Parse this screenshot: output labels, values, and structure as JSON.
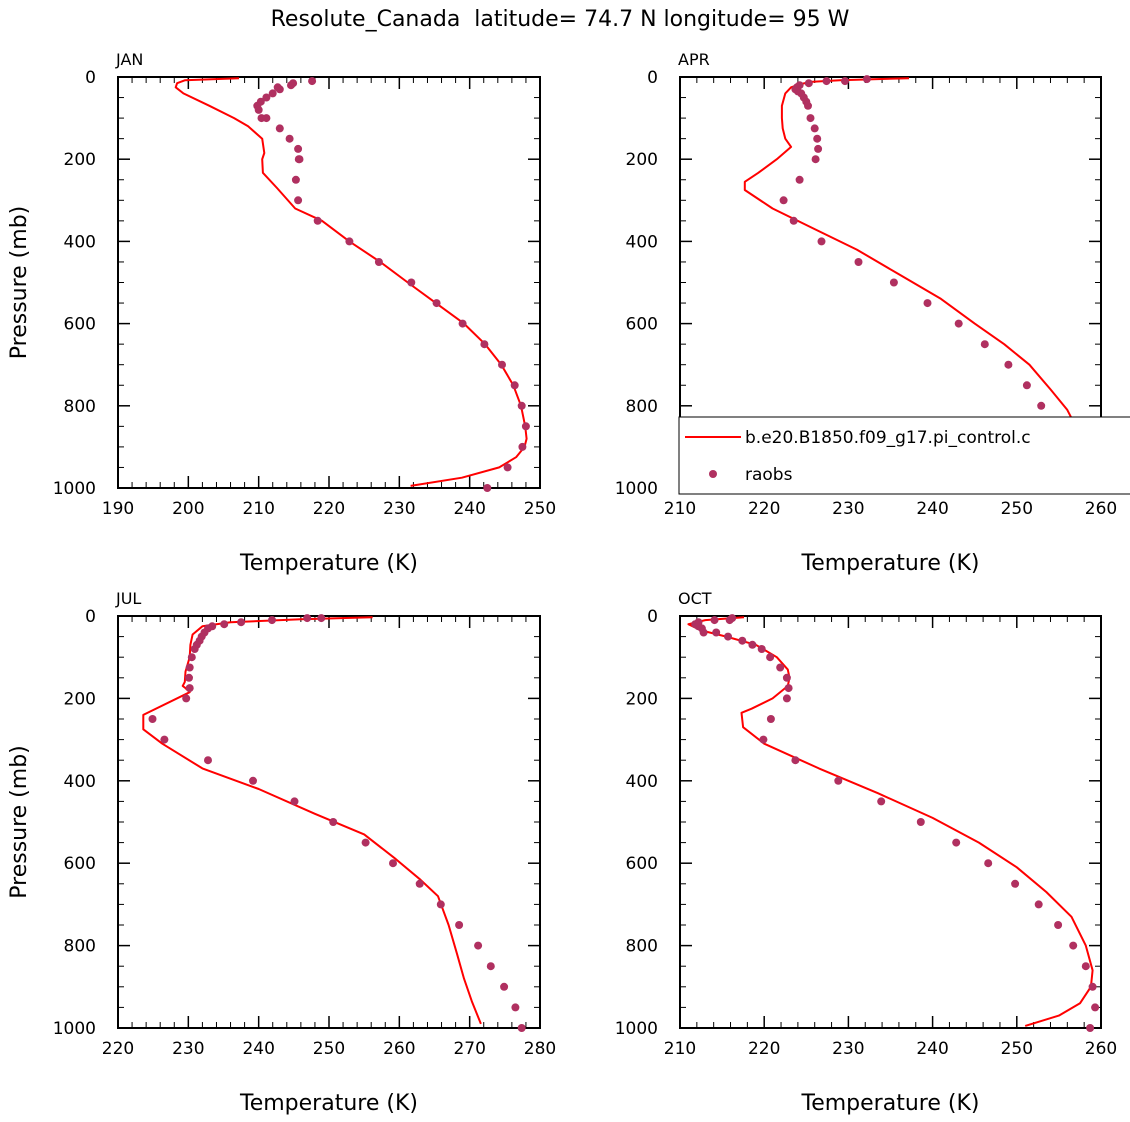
{
  "title": "Resolute_Canada  latitude= 74.7 N longitude= 95 W",
  "colors": {
    "model": "#ff0000",
    "obs": "#b03060"
  },
  "legend": {
    "model_label": "b.e20.B1850.f09_g17.pi_control.c",
    "obs_label": "raobs",
    "panel": "APR"
  },
  "chart_data": [
    {
      "type": "line",
      "title": "JAN",
      "xlabel": "Temperature (K)",
      "ylabel": "Pressure (mb)",
      "xlim": [
        190,
        250
      ],
      "ylim": [
        1000,
        0
      ],
      "xticks": [
        190,
        200,
        210,
        220,
        230,
        240,
        250
      ],
      "yticks": [
        0,
        200,
        400,
        600,
        800,
        1000
      ],
      "series": [
        {
          "name": "b.e20.B1850.f09_g17.pi_control.c",
          "kind": "line",
          "x": [
            207.2,
            199.5,
            198.4,
            198.2,
            199.3,
            203.0,
            206.5,
            208.5,
            210.5,
            210.8,
            210.5,
            210.6,
            212.6,
            215.2,
            219.0,
            222.9,
            227.3,
            231.2,
            235.2,
            239.2,
            242.2,
            244.5,
            246.2,
            247.3,
            247.9,
            248.1,
            247.8,
            246.6,
            244.2,
            238.9,
            231.6
          ],
          "y": [
            3,
            8,
            15,
            25,
            40,
            70,
            100,
            120,
            150,
            185,
            200,
            233,
            270,
            320,
            350,
            400,
            450,
            500,
            550,
            600,
            650,
            700,
            750,
            800,
            850,
            880,
            900,
            925,
            950,
            975,
            995
          ]
        },
        {
          "name": "raobs",
          "kind": "scatter",
          "x": [
            217.6,
            214.9,
            214.6,
            212.7,
            213.0,
            212.0,
            211.1,
            210.3,
            209.8,
            210.0,
            210.4,
            211.1,
            213.0,
            214.4,
            215.6,
            215.8,
            215.7,
            215.3,
            215.6,
            218.4,
            222.9,
            227.1,
            231.7,
            235.3,
            239.0,
            242.1,
            244.6,
            246.4,
            247.4,
            248.0,
            247.5,
            245.4,
            242.5
          ],
          "y": [
            10,
            15,
            20,
            25,
            30,
            40,
            50,
            60,
            70,
            80,
            100,
            100,
            125,
            150,
            175,
            200,
            200,
            250,
            300,
            350,
            400,
            450,
            500,
            550,
            600,
            650,
            700,
            750,
            800,
            850,
            900,
            950,
            1000
          ]
        }
      ]
    },
    {
      "type": "line",
      "title": "APR",
      "xlabel": "Temperature (K)",
      "ylabel": "",
      "xlim": [
        210,
        260
      ],
      "ylim": [
        1000,
        0
      ],
      "xticks": [
        210,
        220,
        230,
        240,
        250,
        260
      ],
      "yticks": [
        0,
        200,
        400,
        600,
        800,
        1000
      ],
      "series": [
        {
          "name": "b.e20.B1850.f09_g17.pi_control.c",
          "kind": "line",
          "x": [
            237.2,
            229.0,
            225.5,
            224.2,
            223.2,
            222.5,
            222.1,
            222.1,
            222.2,
            222.5,
            223.2,
            221.5,
            219.3,
            217.7,
            217.7,
            221.0,
            226.0,
            231.0,
            236.0,
            241.0,
            245.0,
            248.5,
            251.5,
            254.0,
            256.0,
            257.0,
            257.2,
            256.2,
            253.0,
            247.5
          ],
          "y": [
            3,
            8,
            12,
            18,
            25,
            40,
            70,
            100,
            125,
            150,
            170,
            200,
            233,
            255,
            275,
            320,
            370,
            420,
            480,
            540,
            600,
            650,
            700,
            760,
            810,
            850,
            900,
            945,
            975,
            995
          ]
        },
        {
          "name": "raobs",
          "kind": "scatter",
          "x": [
            232.2,
            229.6,
            227.4,
            225.3,
            224.2,
            223.9,
            223.7,
            224.0,
            224.4,
            224.7,
            225.0,
            225.2,
            225.5,
            226.0,
            226.3,
            226.4,
            226.1,
            224.2,
            222.3,
            223.5,
            226.8,
            231.2,
            235.4,
            239.4,
            243.1,
            246.2,
            249.0,
            251.2,
            252.9,
            254.1,
            254.2,
            253.4,
            251.1
          ],
          "y": [
            5,
            10,
            10,
            15,
            20,
            25,
            30,
            35,
            40,
            50,
            60,
            70,
            100,
            125,
            150,
            175,
            200,
            250,
            300,
            350,
            400,
            450,
            500,
            550,
            600,
            650,
            700,
            750,
            800,
            850,
            900,
            950,
            1000
          ]
        }
      ]
    },
    {
      "type": "line",
      "title": "JUL",
      "xlabel": "Temperature (K)",
      "ylabel": "Pressure (mb)",
      "xlim": [
        220,
        280
      ],
      "ylim": [
        1000,
        0
      ],
      "xticks": [
        220,
        230,
        240,
        250,
        260,
        270,
        280
      ],
      "yticks": [
        0,
        200,
        400,
        600,
        800,
        1000
      ],
      "series": [
        {
          "name": "b.e20.B1850.f09_g17.pi_control.c",
          "kind": "line",
          "x": [
            256.2,
            246.0,
            236.0,
            232.0,
            230.6,
            230.3,
            230.2,
            229.6,
            229.5,
            229.2,
            229.6,
            230.2,
            223.6,
            223.6,
            226.3,
            232.0,
            240.0,
            248.0,
            255.0,
            259.5,
            263.0,
            265.5,
            267.0,
            268.2,
            269.2,
            270.3,
            271.6
          ],
          "y": [
            3,
            8,
            15,
            25,
            45,
            70,
            100,
            135,
            160,
            170,
            175,
            185,
            240,
            275,
            310,
            370,
            420,
            480,
            530,
            590,
            640,
            680,
            750,
            820,
            880,
            935,
            990
          ]
        },
        {
          "name": "raobs",
          "kind": "scatter",
          "x": [
            248.9,
            246.9,
            241.9,
            237.5,
            235.1,
            233.4,
            232.8,
            232.3,
            231.9,
            231.6,
            231.2,
            230.9,
            230.5,
            230.2,
            230.1,
            230.2,
            229.7,
            224.9,
            226.6,
            232.8,
            239.2,
            245.1,
            250.6,
            255.2,
            259.1,
            262.9,
            265.9,
            268.5,
            271.2,
            273.0,
            274.9,
            276.5,
            277.4
          ],
          "y": [
            5,
            5,
            10,
            15,
            20,
            25,
            30,
            40,
            50,
            60,
            70,
            80,
            100,
            125,
            150,
            175,
            200,
            250,
            300,
            350,
            400,
            450,
            500,
            550,
            600,
            650,
            700,
            750,
            800,
            850,
            900,
            950,
            1000
          ]
        }
      ]
    },
    {
      "type": "line",
      "title": "OCT",
      "xlabel": "Temperature (K)",
      "ylabel": "",
      "xlim": [
        210,
        260
      ],
      "ylim": [
        1000,
        0
      ],
      "xticks": [
        210,
        220,
        230,
        240,
        250,
        260
      ],
      "yticks": [
        0,
        200,
        400,
        600,
        800,
        1000
      ],
      "series": [
        {
          "name": "b.e20.B1850.f09_g17.pi_control.c",
          "kind": "line",
          "x": [
            217.6,
            213.0,
            211.0,
            212.5,
            215.5,
            219.0,
            221.5,
            222.8,
            223.0,
            222.8,
            221.0,
            218.5,
            217.3,
            217.5,
            220.0,
            226.5,
            233.5,
            240.0,
            245.5,
            250.0,
            253.5,
            256.5,
            258.2,
            259.0,
            258.8,
            257.5,
            255.0,
            251.0
          ],
          "y": [
            3,
            10,
            20,
            35,
            50,
            70,
            100,
            130,
            150,
            170,
            200,
            225,
            235,
            270,
            310,
            370,
            430,
            490,
            550,
            610,
            670,
            730,
            800,
            860,
            900,
            940,
            970,
            995
          ]
        },
        {
          "name": "raobs",
          "kind": "scatter",
          "x": [
            216.2,
            215.9,
            214.1,
            212.2,
            211.8,
            212.2,
            212.6,
            212.8,
            214.3,
            215.7,
            217.4,
            218.6,
            219.7,
            220.7,
            221.9,
            222.7,
            222.9,
            222.7,
            220.8,
            219.9,
            223.7,
            228.8,
            233.9,
            238.6,
            242.8,
            246.6,
            249.8,
            252.6,
            254.9,
            256.7,
            258.2,
            259.0,
            259.3,
            258.7
          ],
          "y": [
            5,
            10,
            10,
            15,
            20,
            25,
            30,
            40,
            40,
            50,
            60,
            70,
            80,
            100,
            125,
            150,
            175,
            200,
            250,
            300,
            350,
            400,
            450,
            500,
            550,
            600,
            650,
            700,
            750,
            800,
            850,
            900,
            950,
            1000
          ]
        }
      ]
    }
  ]
}
